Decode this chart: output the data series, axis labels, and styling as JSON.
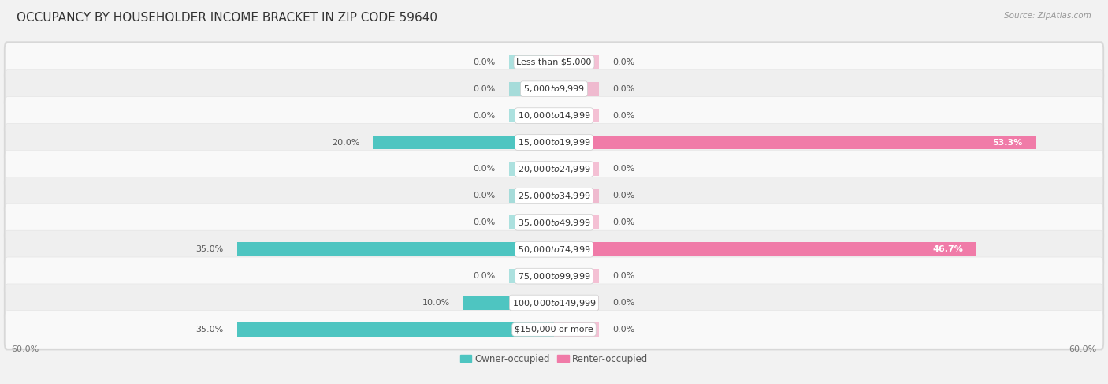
{
  "title": "OCCUPANCY BY HOUSEHOLDER INCOME BRACKET IN ZIP CODE 59640",
  "source": "Source: ZipAtlas.com",
  "categories": [
    "Less than $5,000",
    "$5,000 to $9,999",
    "$10,000 to $14,999",
    "$15,000 to $19,999",
    "$20,000 to $24,999",
    "$25,000 to $34,999",
    "$35,000 to $49,999",
    "$50,000 to $74,999",
    "$75,000 to $99,999",
    "$100,000 to $149,999",
    "$150,000 or more"
  ],
  "owner_values": [
    0.0,
    0.0,
    0.0,
    20.0,
    0.0,
    0.0,
    0.0,
    35.0,
    0.0,
    10.0,
    35.0
  ],
  "renter_values": [
    0.0,
    0.0,
    0.0,
    53.3,
    0.0,
    0.0,
    0.0,
    46.7,
    0.0,
    0.0,
    0.0
  ],
  "owner_color": "#4EC5C1",
  "renter_color": "#F07BA8",
  "owner_label": "Owner-occupied",
  "renter_label": "Renter-occupied",
  "axis_limit": 60.0,
  "background_color": "#f2f2f2",
  "row_colors": [
    "#f9f9f9",
    "#efefef"
  ],
  "title_fontsize": 11,
  "label_fontsize": 8,
  "value_fontsize": 8,
  "source_fontsize": 7.5,
  "legend_fontsize": 8.5,
  "bar_height": 0.52,
  "stub_size": 5.0,
  "x_axis_label": "60.0%"
}
